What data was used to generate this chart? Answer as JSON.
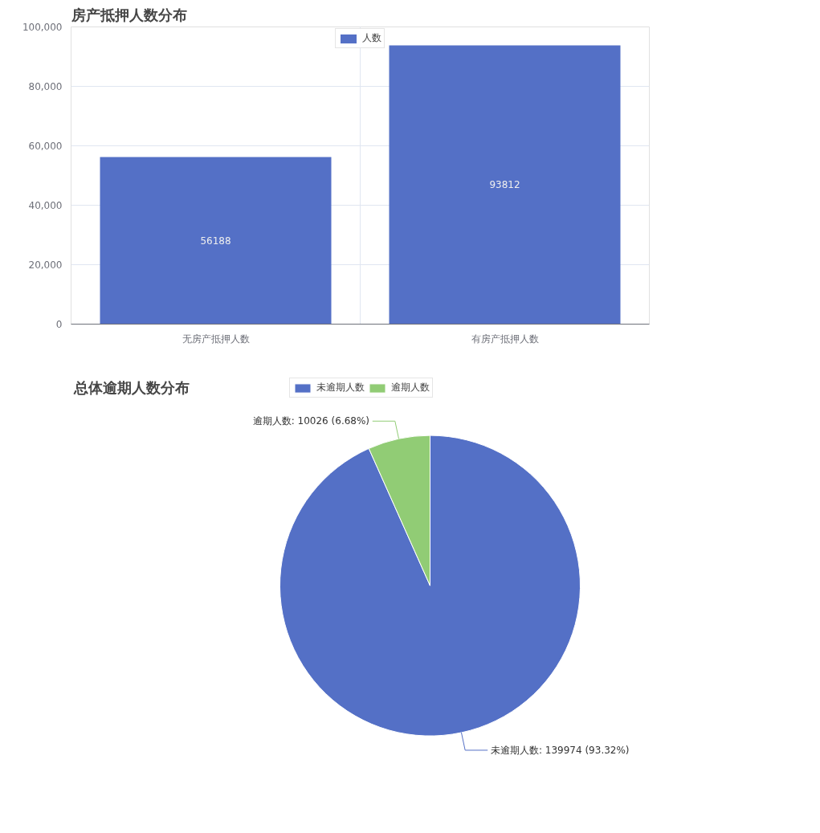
{
  "chart_data": [
    {
      "type": "bar",
      "title": "房产抵押人数分布",
      "categories": [
        "无房产抵押人数",
        "有房产抵押人数"
      ],
      "series": [
        {
          "name": "人数",
          "color": "#5470c6",
          "values": [
            56188,
            93812
          ]
        }
      ],
      "ylim": [
        0,
        100000
      ],
      "yticks": [
        {
          "value": 0,
          "label": "0"
        },
        {
          "value": 20000,
          "label": "20,000"
        },
        {
          "value": 40000,
          "label": "40,000"
        },
        {
          "value": 60000,
          "label": "60,000"
        },
        {
          "value": 80000,
          "label": "80,000"
        },
        {
          "value": 100000,
          "label": "100,000"
        }
      ],
      "grid": true,
      "legend": "top",
      "data_labels": true
    },
    {
      "type": "pie",
      "title": "总体逾期人数分布",
      "categories": [
        "未逾期人数",
        "逾期人数"
      ],
      "values": [
        139974,
        10026
      ],
      "colors": [
        "#5470c6",
        "#91cc75"
      ],
      "value_labels": [
        "未逾期人数: 139974 (93.32%)",
        "逾期人数: 10026 (6.68%)"
      ],
      "legend": "top"
    }
  ]
}
